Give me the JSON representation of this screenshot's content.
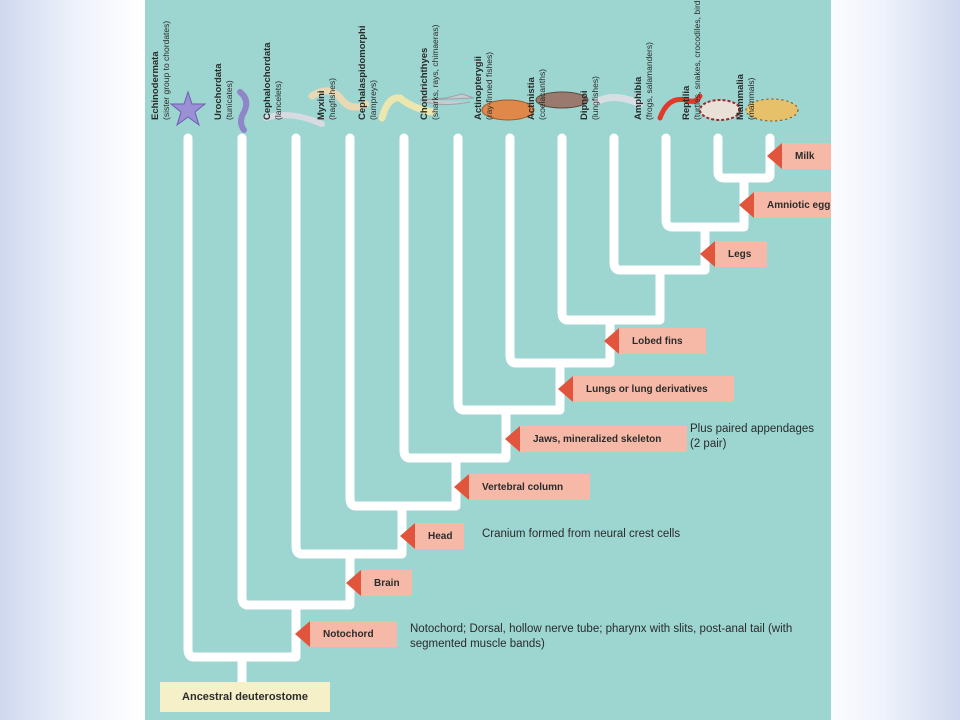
{
  "taxa": [
    {
      "name": "Echinodermata",
      "sub": "(sister group to chordates)"
    },
    {
      "name": "Urochordata",
      "sub": "(tunicates)"
    },
    {
      "name": "Cephalochordata",
      "sub": "(lancelets)"
    },
    {
      "name": "Myxini",
      "sub": "(hagfishes)"
    },
    {
      "name": "Cephalaspidomorphi",
      "sub": "(lampreys)"
    },
    {
      "name": "Chondrichthyes",
      "sub": "(sharks, rays, chimaeras)"
    },
    {
      "name": "Actinopterygii",
      "sub": "(ray-finned fishes)"
    },
    {
      "name": "Actinistia",
      "sub": "(coelacanths)"
    },
    {
      "name": "Dipnoi",
      "sub": "(lungfishes)"
    },
    {
      "name": "Amphibia",
      "sub": "(frogs, salamanders)"
    },
    {
      "name": "Reptilia",
      "sub": "(turtles, snakes, crocodiles, birds)"
    },
    {
      "name": "Mammalia",
      "sub": "(mammals)"
    }
  ],
  "traits": {
    "milk": "Milk",
    "amniotic_egg": "Amniotic egg",
    "legs": "Legs",
    "lobed_fins": "Lobed fins",
    "lungs": "Lungs or lung derivatives",
    "jaws": "Jaws, mineralized skeleton",
    "vertebral": "Vertebral column",
    "head": "Head",
    "brain": "Brain",
    "notochord": "Notochord"
  },
  "root_label": "Ancestral deuterostome",
  "notes": {
    "jaws": "Plus paired appendages (2 pair)",
    "head": "Cranium  formed from neural crest cells",
    "notochord": "Notochord; Dorsal, hollow nerve tube; pharynx with slits, post-anal tail (with segmented muscle bands)"
  },
  "colors": {
    "panel": "#9dd6d1",
    "branch": "#ffffff",
    "tag": "#f6b9a8",
    "arrow": "#e2553d",
    "root": "#f5f0c8"
  }
}
